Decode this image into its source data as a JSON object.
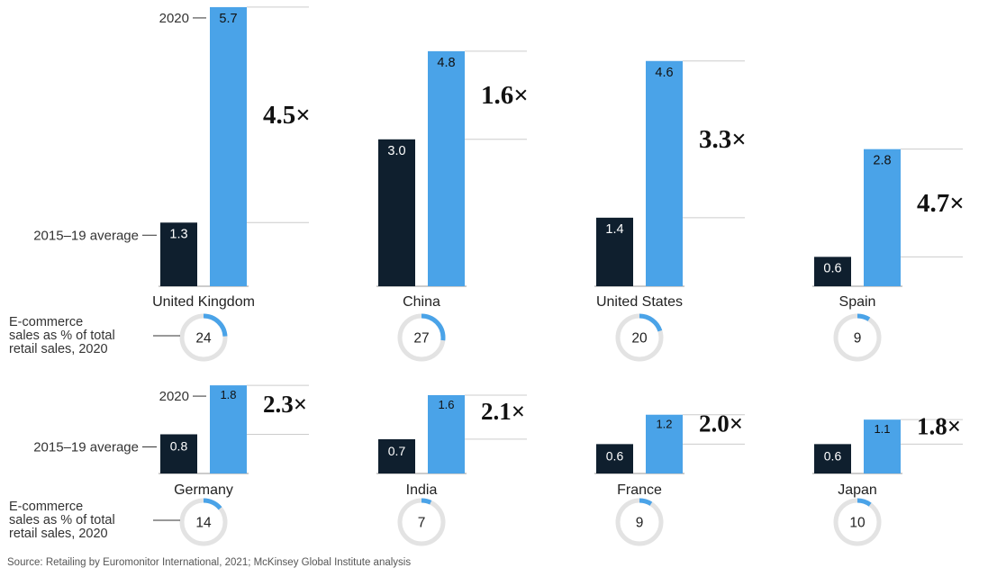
{
  "labels": {
    "year_2020": "2020",
    "avg_label": "2015–19 average",
    "ecom_label_lines": [
      "E-commerce",
      "sales as % of total",
      "retail sales, 2020"
    ]
  },
  "source": "Source: Retailing by Euromonitor International, 2021; McKinsey Global Institute analysis",
  "colors": {
    "dark_bar": "#0f1f2e",
    "light_bar": "#4aa3e8",
    "donut_track": "#e3e3e3",
    "donut_fill": "#4aa3e8",
    "gridline": "#cccccc"
  },
  "chart_data": {
    "type": "bar",
    "series": [
      {
        "name": "2015–19 average"
      },
      {
        "name": "2020"
      }
    ],
    "countries": [
      {
        "name": "United Kingdom",
        "avg": 1.3,
        "y2020": 5.7,
        "avg_label": "1.3",
        "y2020_label": "5.7",
        "multiplier": "4.5×",
        "ecommerce_share": 24
      },
      {
        "name": "China",
        "avg": 3.0,
        "y2020": 4.8,
        "avg_label": "3.0",
        "y2020_label": "4.8",
        "multiplier": "1.6×",
        "ecommerce_share": 27
      },
      {
        "name": "United States",
        "avg": 1.4,
        "y2020": 4.6,
        "avg_label": "1.4",
        "y2020_label": "4.6",
        "multiplier": "3.3×",
        "ecommerce_share": 20
      },
      {
        "name": "Spain",
        "avg": 0.6,
        "y2020": 2.8,
        "avg_label": "0.6",
        "y2020_label": "2.8",
        "multiplier": "4.7×",
        "ecommerce_share": 9
      },
      {
        "name": "Germany",
        "avg": 0.8,
        "y2020": 1.8,
        "avg_label": "0.8",
        "y2020_label": "1.8",
        "multiplier": "2.3×",
        "ecommerce_share": 14
      },
      {
        "name": "India",
        "avg": 0.7,
        "y2020": 1.6,
        "avg_label": "0.7",
        "y2020_label": "1.6",
        "multiplier": "2.1×",
        "ecommerce_share": 7
      },
      {
        "name": "France",
        "avg": 0.6,
        "y2020": 1.2,
        "avg_label": "0.6",
        "y2020_label": "1.2",
        "multiplier": "2.0×",
        "ecommerce_share": 9
      },
      {
        "name": "Japan",
        "avg": 0.6,
        "y2020": 1.1,
        "avg_label": "0.6",
        "y2020_label": "1.1",
        "multiplier": "1.8×",
        "ecommerce_share": 10
      }
    ]
  }
}
